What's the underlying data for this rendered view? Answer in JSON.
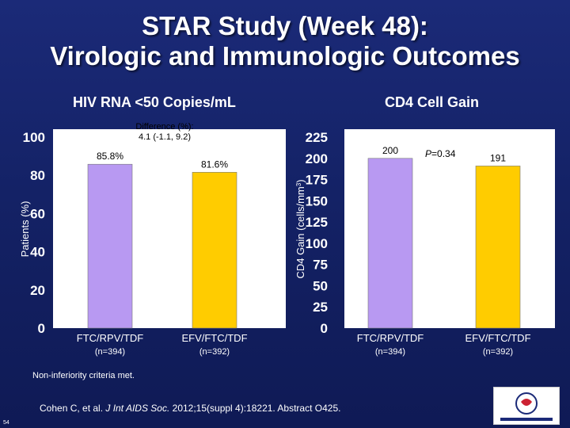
{
  "title_line1": "STAR Study (Week 48):",
  "title_line2": "Virologic and Immunologic Outcomes",
  "footnote": "Non-inferiority criteria met.",
  "citation_pre": "Cohen C, et al. ",
  "citation_journal": "J Int AIDS Soc.",
  "citation_post": " 2012;15(suppl 4):18221. Abstract O425.",
  "page_number": "54",
  "colors": {
    "bar_rpv": "#b899f2",
    "bar_efv": "#ffcc00",
    "plot_bg": "#ffffff",
    "axis_text": "#ffffff"
  },
  "chart_data": [
    {
      "type": "bar",
      "title": "HIV RNA <50 Copies/mL",
      "ylabel": "Patients (%)",
      "ylim": [
        0,
        100
      ],
      "yticks": [
        "0",
        "20",
        "40",
        "60",
        "80",
        "100"
      ],
      "categories": [
        "FTC/RPV/TDF",
        "EFV/FTC/TDF"
      ],
      "category_n": [
        "(n=394)",
        "(n=392)"
      ],
      "values": [
        85.8,
        81.6
      ],
      "value_labels": [
        "85.8%",
        "81.6%"
      ],
      "annotation_line1": "Difference (%):",
      "annotation_line2": "4.1 (-1.1, 9.2)"
    },
    {
      "type": "bar",
      "title": "CD4 Cell Gain",
      "ylabel": "CD4 Gain (cells/mm",
      "ylabel_sup": "3",
      "ylabel_close": ")",
      "ylim": [
        0,
        225
      ],
      "yticks": [
        "0",
        "25",
        "50",
        "75",
        "100",
        "125",
        "150",
        "175",
        "200",
        "225"
      ],
      "categories": [
        "FTC/RPV/TDF",
        "EFV/FTC/TDF"
      ],
      "category_n": [
        "(n=394)",
        "(n=392)"
      ],
      "values": [
        200,
        191
      ],
      "value_labels": [
        "200",
        "191"
      ],
      "annotation_p": "P",
      "annotation_rest": "=0.34"
    }
  ]
}
